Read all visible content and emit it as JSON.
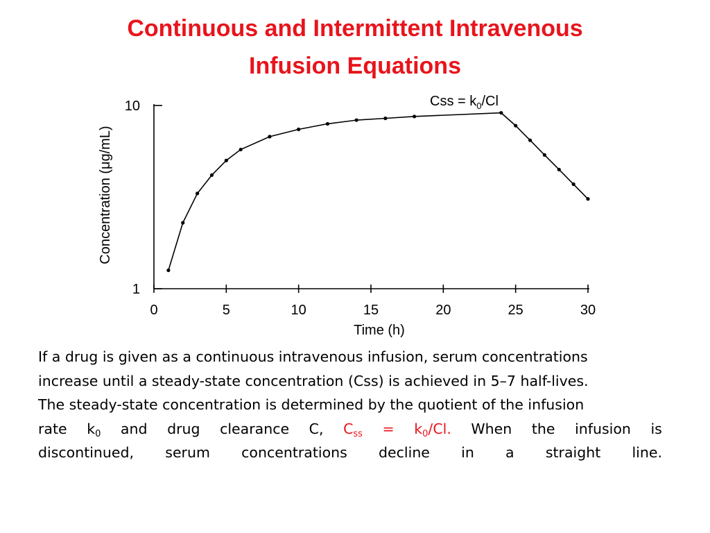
{
  "title": {
    "line1": "Continuous and Intermittent Intravenous",
    "line2": "Infusion Equations"
  },
  "chart_data": {
    "type": "line",
    "xlabel": "Time (h)",
    "ylabel": "Concentration (μg/mL)",
    "xlim": [
      0,
      30
    ],
    "ylim": [
      1,
      10
    ],
    "yscale": "log",
    "x_ticks": [
      0,
      5,
      10,
      15,
      20,
      25,
      30
    ],
    "y_ticks": [
      1,
      10
    ],
    "grid": false,
    "annotation": {
      "text_main": "Css = k",
      "text_sub": "0",
      "text_tail": "/Cl"
    },
    "series": [
      {
        "x": [
          1,
          2,
          3,
          4,
          5,
          6,
          8,
          10,
          12,
          14,
          16,
          18,
          24,
          25,
          26,
          27,
          28,
          29,
          30
        ],
        "y": [
          1.26,
          2.29,
          3.31,
          4.17,
          5.01,
          5.75,
          6.76,
          7.41,
          7.94,
          8.32,
          8.51,
          8.71,
          9.12,
          7.76,
          6.46,
          5.37,
          4.47,
          3.72,
          3.09
        ]
      }
    ]
  },
  "paragraph": {
    "l1": "If a drug is given as a continuous intravenous infusion, serum concentrations",
    "l2": "increase until a steady-state concentration (Css) is achieved in 5–7 half-lives.",
    "l3": "The steady-state concentration is determined by the  quotient of the infusion",
    "l4_a": "rate",
    "l4_k": "k",
    "l4_k_sub": "0",
    "l4_b": "and",
    "l4_c": "drug",
    "l4_d": "clearance",
    "l4_e": "C,",
    "l4_css": "C",
    "l4_css_sub": "ss",
    "l4_eq": "=",
    "l4_k0": "k",
    "l4_k0_sub": "0",
    "l4_cl": "/Cl.",
    "l4_f": "When",
    "l4_g": "the",
    "l4_h": "infusion",
    "l4_i": "is",
    "l5": [
      "discontinued,",
      "serum",
      "concentrations",
      "decline",
      "in",
      "a",
      "straight",
      "line."
    ]
  }
}
